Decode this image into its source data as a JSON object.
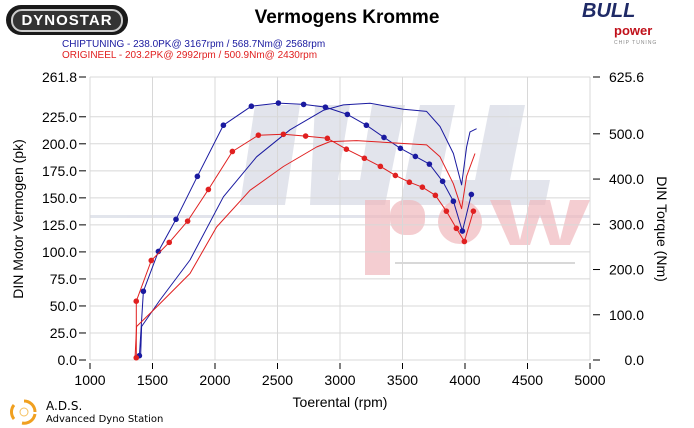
{
  "header": {
    "dynostar_logo": "DYNOSTAR",
    "title": "Vermogens Kromme",
    "legend_chiptuning": "CHIPTUNING  - 238.0PK@ 3167rpm / 568.7Nm@ 2568rpm",
    "legend_origineel": "ORIGINEEL  - 203.2PK@ 2992rpm / 500.9Nm@ 2430rpm",
    "bull_logo": "BULL",
    "power_logo": "power",
    "chip_logo": "CHIP TUNING"
  },
  "footer": {
    "ads_title": "A.D.S.",
    "ads_subtitle": "Advanced Dyno Station"
  },
  "watermark": {
    "bull": "BULL",
    "power": "power",
    "chip": "CHIP TUNING"
  },
  "colors": {
    "chiptuning": "#1a1aa0",
    "origineel": "#e02020",
    "grid": "#d8d8d8"
  },
  "chart_data": {
    "type": "line",
    "title": "Vermogens Kromme",
    "xlabel": "Toerental (rpm)",
    "ylabel": "DIN Motor Vermogen (pk)",
    "y2label": "DIN Torque (Nm)",
    "xlim": [
      1000,
      5000
    ],
    "ylim": [
      0,
      261.8
    ],
    "y2lim": [
      0,
      625.6
    ],
    "x_ticks": [
      "1000",
      "1500",
      "2000",
      "2500",
      "3000",
      "3500",
      "4000",
      "4500",
      "5000"
    ],
    "y_ticks": [
      "0.0",
      "25.0",
      "50.0",
      "75.0",
      "100.0",
      "125.0",
      "150.0",
      "175.0",
      "200.0",
      "225.0",
      "261.8"
    ],
    "y2_ticks": [
      "0.0",
      "100.0",
      "200.0",
      "300.0",
      "400.0",
      "500.0",
      "625.6"
    ],
    "grid": true,
    "series": [
      {
        "name": "CHIPTUNING",
        "kind": "power",
        "axis": "left",
        "color": "#1a1aa0",
        "x": [
          1405,
          1413,
          1560,
          1800,
          2067,
          2333,
          2600,
          2867,
          3027,
          3240,
          3507,
          3693,
          3800,
          3907,
          3973,
          4013,
          4040,
          4093
        ],
        "y": [
          3,
          31,
          55.5,
          92.5,
          151,
          188,
          213,
          231,
          236,
          237.5,
          232,
          230,
          216,
          191,
          162,
          197,
          211,
          214
        ]
      },
      {
        "name": "CHIPTUNING",
        "kind": "torque",
        "axis": "right",
        "color": "#1a1aa0",
        "x": [
          1395,
          1427,
          1547,
          1688,
          1859,
          2067,
          2291,
          2507,
          2709,
          2883,
          3059,
          3211,
          3352,
          3483,
          3603,
          3715,
          3821,
          3907,
          3979,
          4051
        ],
        "y": [
          9.5,
          152,
          240,
          311,
          406,
          519,
          561,
          568,
          565,
          559,
          543,
          519,
          492,
          468,
          450,
          433,
          395,
          351,
          285,
          366
        ]
      },
      {
        "name": "ORIGINEEL",
        "kind": "power",
        "axis": "left",
        "color": "#e02020",
        "x": [
          1360,
          1373,
          1533,
          1800,
          2013,
          2280,
          2547,
          2813,
          2920,
          3133,
          3693,
          3800,
          3907,
          3973,
          4013,
          4080
        ],
        "y": [
          1.5,
          31,
          49,
          80,
          123,
          157,
          179,
          197,
          202,
          203,
          199,
          188,
          163,
          140,
          170,
          191
        ]
      },
      {
        "name": "ORIGINEEL",
        "kind": "torque",
        "axis": "right",
        "color": "#e02020",
        "x": [
          1370,
          1370,
          1490,
          1634,
          1781,
          1947,
          2139,
          2347,
          2547,
          2725,
          2899,
          3051,
          3195,
          3323,
          3443,
          3555,
          3659,
          3763,
          3851,
          3931,
          3995,
          4067
        ],
        "y": [
          5,
          130,
          220,
          260,
          307,
          377,
          461,
          497,
          499,
          495,
          490,
          466,
          446,
          428,
          408,
          393,
          382,
          364,
          329,
          291,
          262,
          329
        ]
      }
    ]
  }
}
